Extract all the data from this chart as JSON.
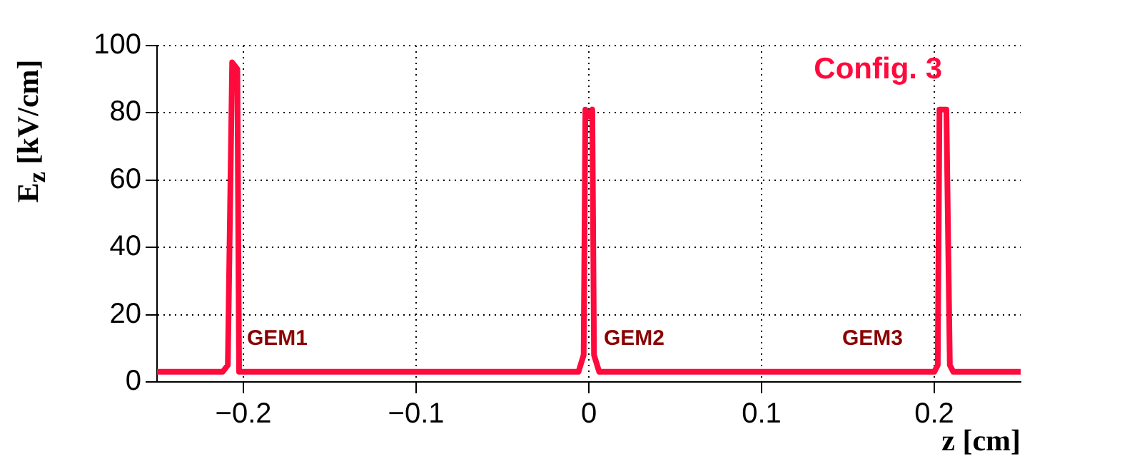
{
  "chart_data": {
    "type": "line",
    "xlabel": "z [cm]",
    "ylabel": "E$_{z}$ [kV/cm]",
    "marker": "none",
    "grid": true,
    "xlim": [
      -0.25,
      0.25
    ],
    "ylim": [
      0,
      100
    ],
    "xticks": [
      {
        "value": -0.2,
        "label": "−0.2"
      },
      {
        "value": -0.1,
        "label": "−0.1"
      },
      0,
      0.1,
      0.2
    ],
    "yticks": [
      0,
      20,
      40,
      60,
      80,
      100
    ],
    "series": [
      {
        "color": "#ff0a3c",
        "x": [
          -0.25,
          -0.212,
          -0.209,
          -0.2065,
          -0.2035,
          -0.2025,
          -0.198,
          -0.006,
          -0.003,
          -0.002,
          0,
          0.002,
          0.003,
          0.006,
          0.2,
          0.202,
          0.203,
          0.207,
          0.209,
          0.211,
          0.25
        ],
        "values": [
          3,
          3,
          5,
          95,
          93,
          3,
          3,
          3,
          8,
          81,
          79,
          81,
          8,
          3,
          3,
          5,
          81,
          81,
          5,
          3,
          3
        ]
      }
    ],
    "annotations": [
      "Config. 3",
      "GEM1",
      "GEM2",
      "GEM3"
    ]
  }
}
